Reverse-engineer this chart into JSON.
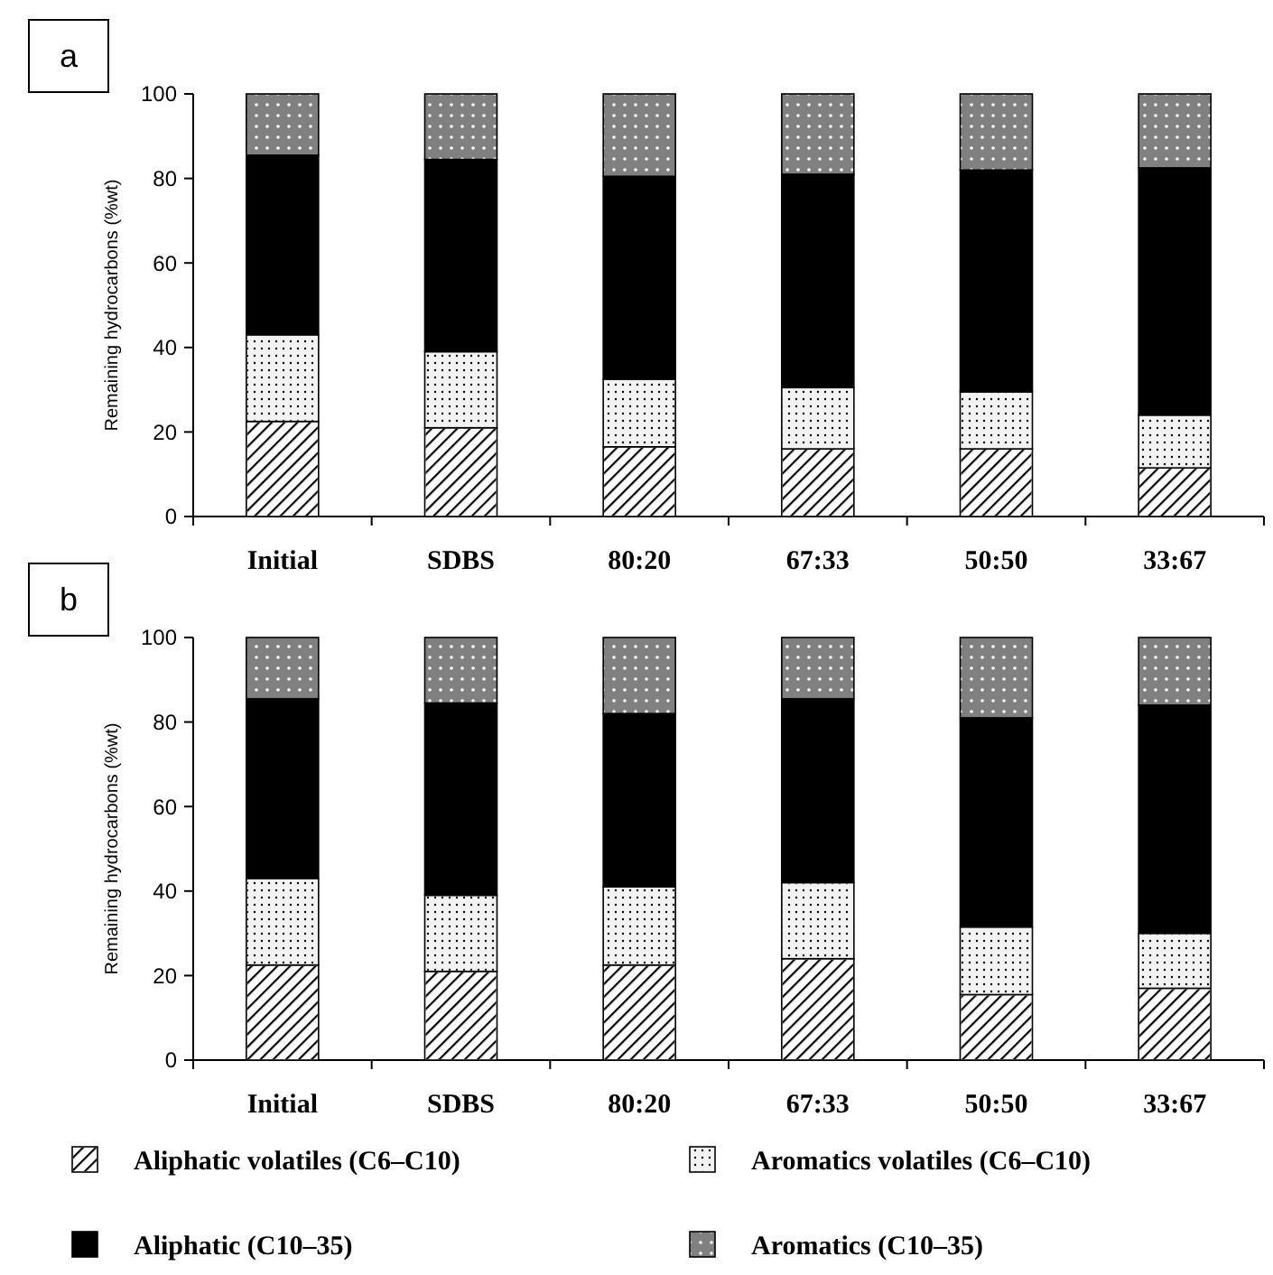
{
  "chart_data": [
    {
      "type": "bar",
      "stacked": true,
      "title": "a",
      "ylabel": "Remaining hydrocarbons (%wt)",
      "categories": [
        "Initial",
        "SDBS",
        "80:20",
        "67:33",
        "50:50",
        "33:67"
      ],
      "ylim": [
        0,
        100
      ],
      "yticks": [
        0,
        20,
        40,
        60,
        80,
        100
      ],
      "series": [
        {
          "color": "#ffffff",
          "values": [
            22.5,
            21,
            16.5,
            16,
            16,
            11.5
          ]
        },
        {
          "color": "#f2f2f2",
          "values": [
            20.5,
            18,
            16,
            14.5,
            13.5,
            12.5
          ]
        },
        {
          "color": "#000000",
          "values": [
            42.5,
            45.5,
            48,
            50.5,
            52.5,
            58.5
          ]
        },
        {
          "color": "#808080",
          "values": [
            14.5,
            15.5,
            19.5,
            19,
            18,
            17.5
          ]
        }
      ]
    },
    {
      "type": "bar",
      "stacked": true,
      "title": "b",
      "ylabel": "Remaining hydrocarbons (%wt)",
      "categories": [
        "Initial",
        "SDBS",
        "80:20",
        "67:33",
        "50:50",
        "33:67"
      ],
      "ylim": [
        0,
        100
      ],
      "yticks": [
        0,
        20,
        40,
        60,
        80,
        100
      ],
      "legend": "bottom",
      "series": [
        {
          "name": "Aliphatic volatiles (C6–C10)",
          "color": "#ffffff",
          "values": [
            22.5,
            21,
            22.5,
            24,
            15.5,
            17
          ]
        },
        {
          "name": "Aromatics volatiles (C6–C10)",
          "color": "#f2f2f2",
          "values": [
            20.5,
            18,
            18.5,
            18,
            16,
            13
          ]
        },
        {
          "name": "Aliphatic (C10–35)",
          "color": "#000000",
          "values": [
            42.5,
            45.5,
            41,
            43.5,
            49.5,
            54
          ]
        },
        {
          "name": "Aromatics (C10–35)",
          "color": "#808080",
          "values": [
            14.5,
            15.5,
            18,
            14.5,
            19,
            16
          ]
        }
      ]
    }
  ]
}
